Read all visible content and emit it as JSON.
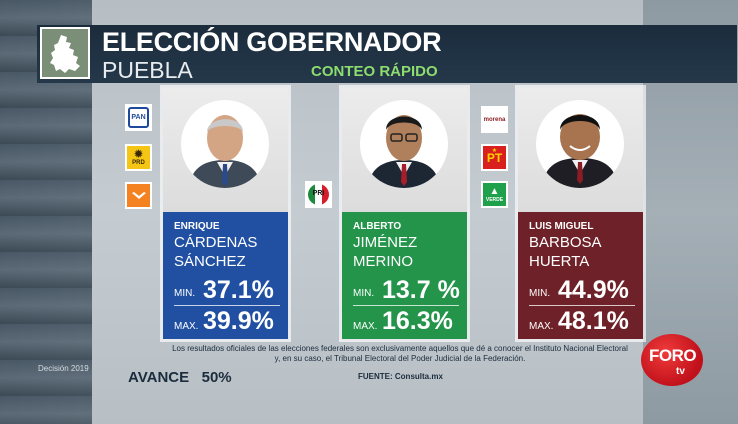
{
  "header": {
    "title": "ELECCIÓN GOBERNADOR",
    "subtitle": "PUEBLA",
    "quick_count": "CONTEO RÁPIDO"
  },
  "candidates": [
    {
      "first": "ENRIQUE",
      "last1": "CÁRDENAS",
      "last2": "SÁNCHEZ",
      "min_label": "MIN.",
      "min": "37.1%",
      "max_label": "MAX.",
      "max": "39.9%",
      "color": "#2150a3"
    },
    {
      "first": "ALBERTO",
      "last1": "JIMÉNEZ",
      "last2": "MERINO",
      "min_label": "MIN.",
      "min": "13.7 %",
      "max_label": "MAX.",
      "max": "16.3%",
      "color": "#23944a"
    },
    {
      "first": "LUIS MIGUEL",
      "last1": "BARBOSA",
      "last2": "HUERTA",
      "min_label": "MIN.",
      "min": "44.9%",
      "max_label": "MAX.",
      "max": "48.1%",
      "color": "#6e2128"
    }
  ],
  "parties": {
    "pan": "PAN",
    "prd": "PRD",
    "pri": "PRI",
    "morena": "morena",
    "pt": "PT",
    "verde": "VERDE"
  },
  "footer": {
    "disclaimer_1": "Los resultados oficiales de las elecciones federales son exclusivamente aquellos que dé a conocer el Instituto Nacional Electoral",
    "disclaimer_2": "y, en su caso, el Tribunal Electoral del Poder Judicial de la Federación.",
    "source": "FUENTE: Consulta.mx",
    "progress": "AVANCE   50%",
    "decision": "Decisión 2019"
  },
  "brand": {
    "name": "FORO",
    "sub": "tv",
    "color": "#d0141e"
  }
}
